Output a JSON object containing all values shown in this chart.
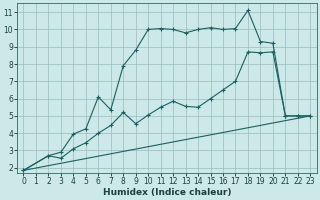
{
  "background_color": "#cce8e8",
  "grid_color": "#9bbcbc",
  "line_color": "#1a6060",
  "xlabel": "Humidex (Indice chaleur)",
  "xlim": [
    -0.5,
    23.5
  ],
  "ylim": [
    1.7,
    11.5
  ],
  "xticks": [
    0,
    1,
    2,
    3,
    4,
    5,
    6,
    7,
    8,
    9,
    10,
    11,
    12,
    13,
    14,
    15,
    16,
    17,
    18,
    19,
    20,
    21,
    22,
    23
  ],
  "yticks": [
    2,
    3,
    4,
    5,
    6,
    7,
    8,
    9,
    10,
    11
  ],
  "series1_x": [
    0,
    2,
    3,
    4,
    5,
    6,
    7,
    8,
    9,
    10,
    11,
    12,
    13,
    14,
    15,
    16,
    17,
    18,
    19,
    20,
    21,
    22,
    23
  ],
  "series1_y": [
    1.85,
    2.7,
    2.9,
    3.95,
    4.25,
    6.1,
    5.35,
    7.9,
    8.8,
    10.0,
    10.05,
    10.0,
    9.8,
    10.0,
    10.1,
    10.0,
    10.05,
    11.1,
    9.3,
    9.2,
    5.0,
    5.0,
    5.0
  ],
  "series2_x": [
    0,
    2,
    3,
    4,
    5,
    6,
    7,
    8,
    9,
    10,
    11,
    12,
    13,
    14,
    15,
    16,
    17,
    18,
    19,
    20,
    21,
    22,
    23
  ],
  "series2_y": [
    1.85,
    2.7,
    2.55,
    3.1,
    3.45,
    4.0,
    4.45,
    5.2,
    4.55,
    5.05,
    5.5,
    5.85,
    5.55,
    5.5,
    6.0,
    6.5,
    7.0,
    8.7,
    8.65,
    8.7,
    5.0,
    5.0,
    5.0
  ],
  "series3_x": [
    0,
    23
  ],
  "series3_y": [
    1.85,
    5.0
  ],
  "tick_fontsize": 5.5,
  "xlabel_fontsize": 6.5,
  "marker_size": 3.0,
  "line_width": 0.8
}
